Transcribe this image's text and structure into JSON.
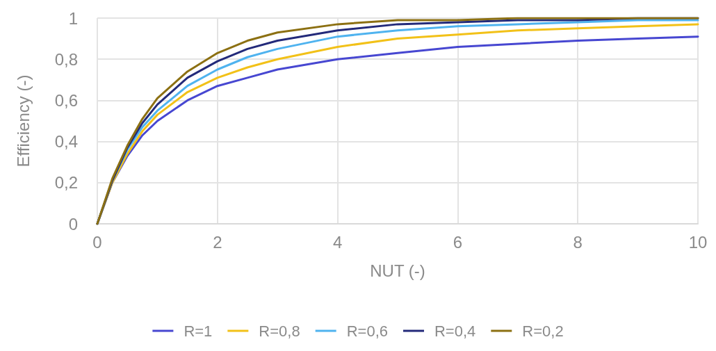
{
  "chart_data": {
    "type": "line",
    "xlabel": "NUT (-)",
    "ylabel": "Efficiency (-)",
    "x": [
      0,
      0.25,
      0.5,
      0.75,
      1,
      1.5,
      2,
      2.5,
      3,
      4,
      5,
      6,
      7,
      8,
      9,
      10
    ],
    "xlim": [
      0,
      10
    ],
    "xticks": [
      0,
      2,
      4,
      6,
      8,
      10
    ],
    "ylim": [
      0,
      1
    ],
    "yticks": [
      0,
      {
        "value": 0.2,
        "label": "0,2"
      },
      {
        "value": 0.4,
        "label": "0,4"
      },
      {
        "value": 0.6,
        "label": "0,6"
      },
      {
        "value": 0.8,
        "label": "0,8"
      },
      1
    ],
    "grid": true,
    "legend": "bottom",
    "marker": "none",
    "line_style": "solid",
    "series": [
      {
        "name": "R=1",
        "color": "#4747d1",
        "values": [
          0,
          0.2,
          0.33,
          0.43,
          0.5,
          0.6,
          0.67,
          0.71,
          0.75,
          0.8,
          0.83,
          0.86,
          0.875,
          0.89,
          0.9,
          0.91
        ]
      },
      {
        "name": "R=0,8",
        "color": "#f2c118",
        "values": [
          0,
          0.2,
          0.34,
          0.45,
          0.53,
          0.64,
          0.71,
          0.76,
          0.8,
          0.86,
          0.9,
          0.92,
          0.94,
          0.95,
          0.96,
          0.97
        ]
      },
      {
        "name": "R=0,6",
        "color": "#4fb3ef",
        "values": [
          0,
          0.21,
          0.36,
          0.47,
          0.55,
          0.67,
          0.75,
          0.81,
          0.85,
          0.91,
          0.94,
          0.96,
          0.97,
          0.98,
          0.99,
          0.99
        ]
      },
      {
        "name": "R=0,4",
        "color": "#232a7a",
        "values": [
          0,
          0.21,
          0.37,
          0.49,
          0.58,
          0.71,
          0.79,
          0.85,
          0.89,
          0.94,
          0.97,
          0.98,
          0.99,
          0.99,
          1,
          1
        ]
      },
      {
        "name": "R=0,2",
        "color": "#8c7012",
        "values": [
          0,
          0.22,
          0.38,
          0.51,
          0.61,
          0.74,
          0.83,
          0.89,
          0.93,
          0.97,
          0.99,
          0.99,
          1,
          1,
          1,
          1
        ]
      }
    ]
  }
}
